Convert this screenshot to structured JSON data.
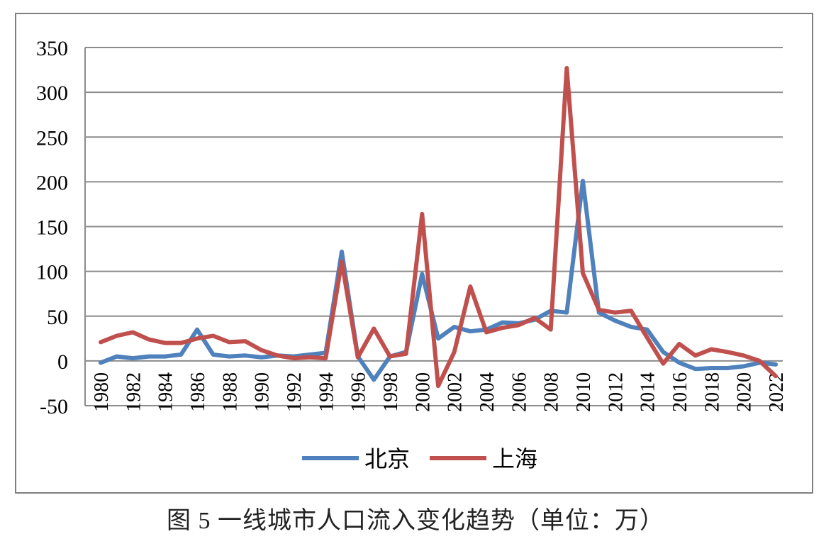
{
  "caption": "图 5  一线城市人口流入变化趋势（单位：万）",
  "chart_data": {
    "type": "line",
    "title": "",
    "xlabel": "",
    "ylabel": "",
    "ylim": [
      -50,
      350
    ],
    "yticks": [
      "350",
      "300",
      "250",
      "200",
      "150",
      "100",
      "50",
      "0",
      "-50"
    ],
    "x": [
      1980,
      1981,
      1982,
      1983,
      1984,
      1985,
      1986,
      1987,
      1988,
      1989,
      1990,
      1991,
      1992,
      1993,
      1994,
      1995,
      1996,
      1997,
      1998,
      1999,
      2000,
      2001,
      2002,
      2003,
      2004,
      2005,
      2006,
      2007,
      2008,
      2009,
      2010,
      2011,
      2012,
      2013,
      2014,
      2015,
      2016,
      2017,
      2018,
      2019,
      2020,
      2021,
      2022
    ],
    "xtick_labels": [
      "1980",
      "1982",
      "1984",
      "1986",
      "1988",
      "1990",
      "1992",
      "1994",
      "1996",
      "1998",
      "2000",
      "2002",
      "2004",
      "2006",
      "2008",
      "2010",
      "2012",
      "2014",
      "2016",
      "2018",
      "2020",
      "2022"
    ],
    "grid": true,
    "legend_position": "bottom",
    "series": [
      {
        "name": "北京",
        "color": "#4f81bd",
        "values": [
          -2,
          5,
          3,
          5,
          5,
          7,
          35,
          7,
          5,
          6,
          4,
          6,
          5,
          7,
          9,
          122,
          5,
          -21,
          5,
          10,
          97,
          25,
          38,
          33,
          35,
          43,
          42,
          46,
          56,
          54,
          201,
          54,
          45,
          38,
          35,
          10,
          -2,
          -9,
          -8,
          -8,
          -6,
          -2,
          -4
        ]
      },
      {
        "name": "上海",
        "color": "#c0504d",
        "values": [
          21,
          28,
          32,
          24,
          20,
          20,
          25,
          28,
          21,
          22,
          12,
          6,
          3,
          4,
          3,
          111,
          4,
          36,
          5,
          8,
          164,
          -28,
          10,
          83,
          32,
          37,
          40,
          48,
          35,
          327,
          98,
          57,
          54,
          56,
          26,
          -3,
          19,
          6,
          13,
          10,
          6,
          0,
          -17
        ]
      }
    ]
  }
}
